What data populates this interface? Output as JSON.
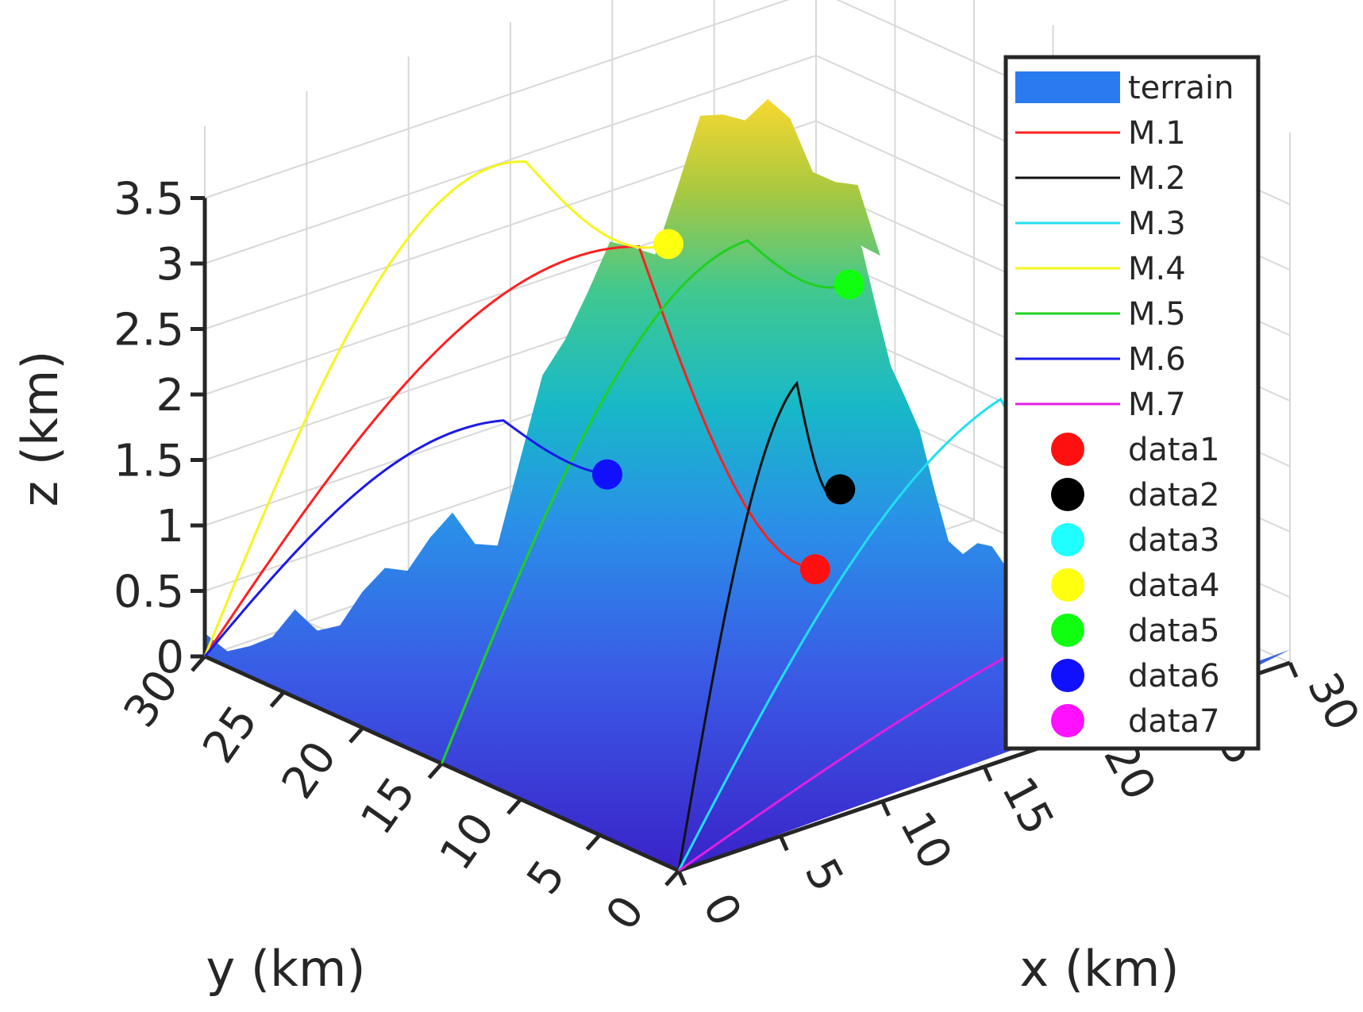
{
  "chart_data": {
    "type": "line",
    "title": "",
    "xlabel": "x (km)",
    "ylabel": "y (km)",
    "zlabel": "z (km)",
    "xlim": [
      0,
      30
    ],
    "ylim": [
      0,
      30
    ],
    "zlim": [
      0,
      3.5
    ],
    "x_ticks": [
      "0",
      "5",
      "10",
      "15",
      "20",
      "25",
      "30"
    ],
    "y_ticks": [
      "0",
      "5",
      "10",
      "15",
      "20",
      "25",
      "30"
    ],
    "z_ticks": [
      "0",
      "0.5",
      "1",
      "1.5",
      "2",
      "2.5",
      "3",
      "3.5"
    ],
    "grid": true,
    "legend_position": "top-right",
    "surface": {
      "name": "terrain",
      "color": "#2b7bf0",
      "peak_x": 23,
      "peak_y": 27,
      "peak_z": 3.4
    },
    "series": [
      {
        "name": "M.1",
        "color": "#ff2020",
        "start": [
          0,
          30,
          0
        ],
        "apex": [
          12,
          18,
          3.15
        ],
        "end": [
          16,
          12,
          0.8
        ]
      },
      {
        "name": "M.2",
        "color": "#111111",
        "start": [
          0,
          0,
          0
        ],
        "apex": [
          12,
          8,
          2.65
        ],
        "end": [
          18,
          13,
          1.25
        ]
      },
      {
        "name": "M.3",
        "color": "#20e0f0",
        "start": [
          0,
          0,
          0
        ],
        "apex": [
          22,
          8,
          2.0
        ],
        "end": [
          27,
          8,
          0.9
        ]
      },
      {
        "name": "M.4",
        "color": "#f5f520",
        "start": [
          0,
          30,
          0
        ],
        "apex": [
          8,
          20,
          3.9
        ],
        "end": [
          15,
          20,
          2.9
        ]
      },
      {
        "name": "M.5",
        "color": "#20d020",
        "start": [
          0,
          15,
          0
        ],
        "apex": [
          15,
          15,
          3.2
        ],
        "end": [
          20,
          15,
          2.6
        ]
      },
      {
        "name": "M.6",
        "color": "#1a1ae8",
        "start": [
          0,
          30,
          0
        ],
        "apex": [
          10,
          24,
          1.6
        ],
        "end": [
          12,
          20,
          1.3
        ]
      },
      {
        "name": "M.7",
        "color": "#e020e0",
        "start": [
          0,
          0,
          0
        ],
        "apex": [
          25,
          5,
          0.45
        ],
        "end": [
          28,
          4,
          0.4
        ]
      }
    ],
    "markers": [
      {
        "name": "data1",
        "color": "#ff1010"
      },
      {
        "name": "data2",
        "color": "#000000"
      },
      {
        "name": "data3",
        "color": "#20ffff"
      },
      {
        "name": "data4",
        "color": "#ffff10"
      },
      {
        "name": "data5",
        "color": "#10ff10"
      },
      {
        "name": "data6",
        "color": "#1010ff"
      },
      {
        "name": "data7",
        "color": "#ff10ff"
      }
    ]
  }
}
